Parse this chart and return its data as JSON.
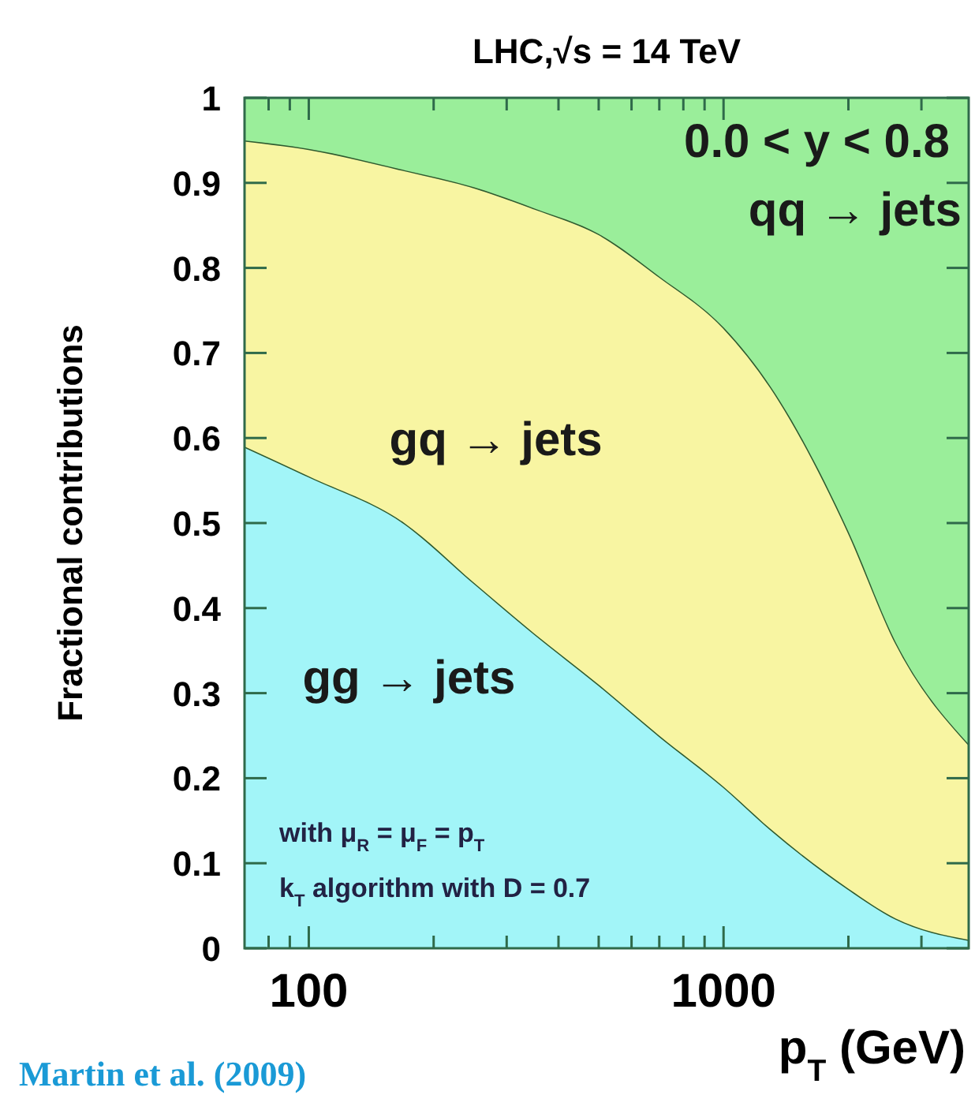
{
  "chart_data": {
    "type": "area",
    "stacked": true,
    "log": "x",
    "title": "LHC,√s = 14 TeV",
    "xlabel": "p$_{T}$  (GeV)",
    "ylabel": "Fractional contributions",
    "x": [
      70,
      100,
      170,
      250,
      350,
      500,
      700,
      1000,
      1300,
      2000,
      2600,
      3900
    ],
    "series": [
      {
        "name": "gg → jets",
        "color": "#a2f5f8",
        "values": [
          0.59,
          0.555,
          0.5,
          0.43,
          0.37,
          0.31,
          0.25,
          0.19,
          0.14,
          0.07,
          0.035,
          0.01
        ]
      },
      {
        "name": "gq → jets",
        "color": "#f8f5a2",
        "values": [
          0.36,
          0.385,
          0.415,
          0.465,
          0.5,
          0.53,
          0.54,
          0.54,
          0.52,
          0.42,
          0.325,
          0.23
        ]
      },
      {
        "name": "qq → jets",
        "color": "#9aee9a",
        "values": [
          0.05,
          0.06,
          0.085,
          0.105,
          0.13,
          0.16,
          0.21,
          0.27,
          0.34,
          0.51,
          0.64,
          0.76
        ]
      }
    ],
    "xlim": [
      70,
      3900
    ],
    "ylim": [
      0,
      1
    ],
    "xticks": [
      {
        "value": 80,
        "label": null
      },
      {
        "value": 90,
        "label": null
      },
      100,
      {
        "value": 200,
        "label": null
      },
      {
        "value": 300,
        "label": null
      },
      {
        "value": 400,
        "label": null
      },
      {
        "value": 500,
        "label": null
      },
      {
        "value": 600,
        "label": null
      },
      {
        "value": 700,
        "label": null
      },
      {
        "value": 800,
        "label": null
      },
      {
        "value": 900,
        "label": null
      },
      1000,
      {
        "value": 2000,
        "label": null
      },
      {
        "value": 3000,
        "label": null
      }
    ],
    "yticks": [
      0,
      0.1,
      0.2,
      0.3,
      0.4,
      0.5,
      0.6,
      0.7,
      0.8,
      0.9,
      1
    ],
    "annotations": [
      "0.0 < y < 0.8",
      "with μ$_{R}$ = μ$_{F}$ = p$_{T}$",
      "k$_{T}$ algorithm with D = 0.7",
      "Martin et al. (2009)"
    ]
  }
}
